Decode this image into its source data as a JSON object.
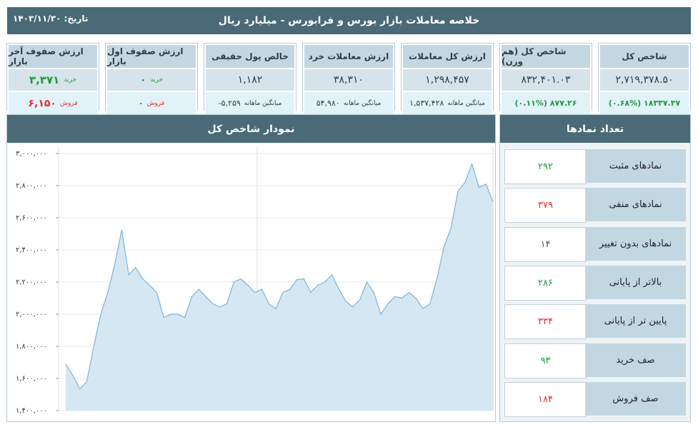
{
  "header": {
    "title": "خلاصه معاملات بازار بورس و فرابورس - میلیارد ریال",
    "date": "تاریخ: ۱۴۰۳/۱۱/۳۰"
  },
  "cards": [
    {
      "title": "شاخص کل",
      "value": "۲,۷۱۹,۳۷۸.۵۰",
      "sub": "(۰.۶۸%) ۱۸۳۳۷.۳۷"
    },
    {
      "title": "شاخص کل (هم وزن)",
      "value": "۸۳۲,۴۰۱.۰۳",
      "sub": "(۰.۱۱%) ۸۷۷.۲۶"
    },
    {
      "title": "ارزش کل معاملات",
      "value": "۱,۲۹۸,۴۵۷",
      "sub_label": "میانگین ماهانه",
      "sub": "۱,۵۳۷,۴۲۸"
    },
    {
      "title": "ارزش معاملات خرد",
      "value": "۳۸,۳۱۰",
      "sub_label": "میانگین ماهانه",
      "sub": "۵۴,۹۸۰"
    },
    {
      "title": "خالص پول حقیقی",
      "value": "۱,۱۸۲",
      "sub_label": "میانگین ماهانه",
      "sub": "-۵,۲۵۹"
    },
    {
      "title": "ارزش صفوف اول بازار",
      "value_label": "خرید",
      "value": "۰",
      "sub_label": "فروش",
      "sub": "۰"
    },
    {
      "title": "ارزش صفوف آخر بازار",
      "value_label": "خرید",
      "value": "۳,۳۷۱",
      "sub_label": "فروش",
      "sub": "۶,۱۵۰"
    }
  ],
  "chart_data": {
    "type": "area",
    "title": "نمودار شاخص کل",
    "color": "#7fb3d3",
    "grid": true,
    "ylim": [
      1400000,
      3000000
    ],
    "yticks": [
      {
        "value": 1400000,
        "label": "۱,۴۰۰,۰۰۰"
      },
      {
        "value": 1600000,
        "label": "۱,۶۰۰,۰۰۰"
      },
      {
        "value": 1800000,
        "label": "۱,۸۰۰,۰۰۰"
      },
      {
        "value": 2000000,
        "label": "۲,۰۰۰,۰۰۰"
      },
      {
        "value": 2200000,
        "label": "۲,۲۰۰,۰۰۰"
      },
      {
        "value": 2400000,
        "label": "۲,۴۰۰,۰۰۰"
      },
      {
        "value": 2600000,
        "label": "۲,۶۰۰,۰۰۰"
      },
      {
        "value": 2800000,
        "label": "۲,۸۰۰,۰۰۰"
      },
      {
        "value": 3000000,
        "label": "۳,۰۰۰,۰۰۰"
      }
    ],
    "values": [
      1690000,
      1620000,
      1535000,
      1580000,
      1800000,
      2000000,
      2135000,
      2310000,
      2525000,
      2245000,
      2290000,
      2220000,
      2180000,
      2135000,
      1980000,
      2000000,
      2000000,
      1980000,
      2110000,
      2155000,
      2110000,
      2065000,
      2045000,
      2065000,
      2200000,
      2220000,
      2180000,
      2135000,
      2155000,
      2065000,
      2035000,
      2135000,
      2155000,
      2215000,
      2220000,
      2135000,
      2180000,
      2200000,
      2245000,
      2155000,
      2080000,
      2045000,
      2090000,
      2200000,
      2135000,
      2000000,
      2065000,
      2110000,
      2100000,
      2135000,
      2100000,
      2035000,
      2065000,
      2220000,
      2420000,
      2535000,
      2765000,
      2820000,
      2935000,
      2790000,
      2810000,
      2700000
    ]
  },
  "symbols": {
    "title": "تعداد نمادها",
    "rows": [
      {
        "label": "نمادهای مثبت",
        "count": "۲۹۲"
      },
      {
        "label": "نمادهای منفی",
        "count": "۳۷۹"
      },
      {
        "label": "نمادهای بدون تغییر",
        "count": "۱۴"
      },
      {
        "label": "بالاتر از پایانی",
        "count": "۲۸۶"
      },
      {
        "label": "پایین تر از پایانی",
        "count": "۳۳۴"
      },
      {
        "label": "صف خرید",
        "count": "۹۳"
      },
      {
        "label": "صف فروش",
        "count": "۱۸۴"
      }
    ]
  }
}
